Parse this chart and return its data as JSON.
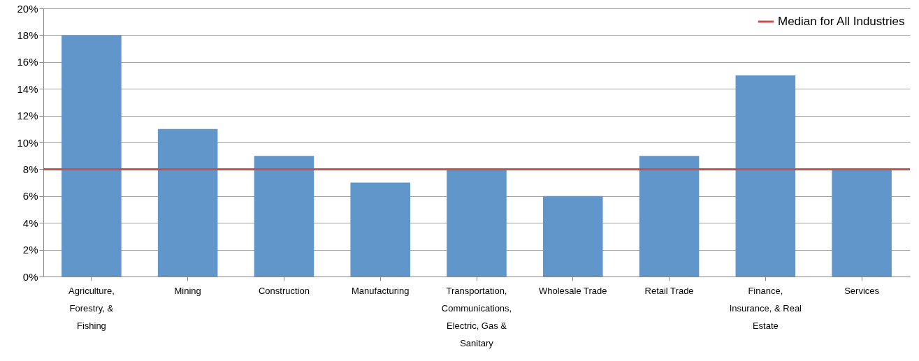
{
  "chart_data": {
    "type": "bar",
    "categories": [
      "Agriculture, Forestry, & Fishing",
      "Mining",
      "Construction",
      "Manufacturing",
      "Transportation, Communications, Electric, Gas & Sanitary",
      "Wholesale Trade",
      "Retail Trade",
      "Finance, Insurance, & Real Estate",
      "Services"
    ],
    "values": [
      18,
      11,
      9,
      7,
      8,
      6,
      9,
      15,
      8
    ],
    "color": "#6096c9",
    "ylim": [
      0,
      20
    ],
    "yticks": [
      {
        "value": 0,
        "label": "0%"
      },
      {
        "value": 2,
        "label": "2%"
      },
      {
        "value": 4,
        "label": "4%"
      },
      {
        "value": 6,
        "label": "6%"
      },
      {
        "value": 8,
        "label": "8%"
      },
      {
        "value": 10,
        "label": "10%"
      },
      {
        "value": 12,
        "label": "12%"
      },
      {
        "value": 14,
        "label": "14%"
      },
      {
        "value": 16,
        "label": "16%"
      },
      {
        "value": 18,
        "label": "18%"
      },
      {
        "value": 20,
        "label": "20%"
      }
    ],
    "grid": "y",
    "legend": "top right",
    "ref_lines": [
      {
        "axis": "y",
        "value": 8,
        "label": "Median for All Industries",
        "color": "#c8504b"
      }
    ]
  }
}
